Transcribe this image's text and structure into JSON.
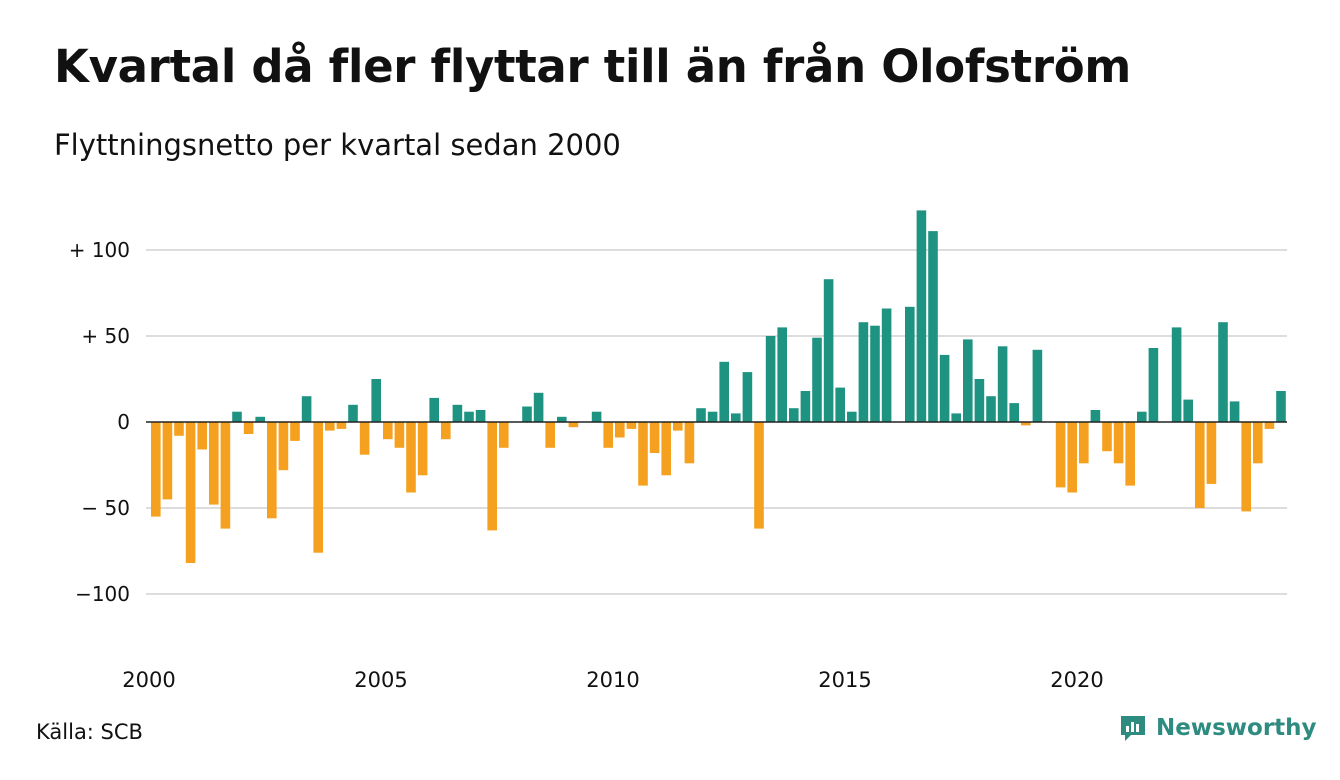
{
  "title": "Kvartal då fler flyttar till än från Olofström",
  "subtitle": "Flyttningsnetto per kvartal sedan 2000",
  "source": "Källa: SCB",
  "brand": {
    "name": "Newsworthy",
    "icon": "newsworthy-logo-icon",
    "color": "#2e8b80"
  },
  "colors": {
    "positive": "#1f9382",
    "negative": "#f5a11f",
    "grid": "#dddddd",
    "zero_line": "#222222"
  },
  "chart_data": {
    "type": "bar",
    "title": "Kvartal då fler flyttar till än från Olofström",
    "subtitle": "Flyttningsnetto per kvartal sedan 2000",
    "xlabel": "",
    "ylabel": "",
    "x_start": "2000 Q1",
    "x_ticks": [
      "2000",
      "2005",
      "2010",
      "2015",
      "2020"
    ],
    "y_ticks": [
      {
        "value": 100,
        "label": "+ 100"
      },
      {
        "value": 50,
        "label": "+  50"
      },
      {
        "value": 0,
        "label": "0"
      },
      {
        "value": -50,
        "label": "− 50"
      },
      {
        "value": -100,
        "label": "−100"
      }
    ],
    "ylim": [
      -130,
      128
    ],
    "grid": true,
    "legend": "none",
    "values": [
      -55,
      -45,
      -8,
      -82,
      -16,
      -48,
      -62,
      6,
      -7,
      3,
      -56,
      -28,
      -11,
      15,
      -76,
      -5,
      -4,
      10,
      -19,
      25,
      -10,
      -15,
      -41,
      -31,
      14,
      -10,
      10,
      6,
      7,
      -63,
      -15,
      0,
      9,
      17,
      -15,
      3,
      -3,
      0,
      6,
      -15,
      -9,
      -4,
      -37,
      -18,
      -31,
      -5,
      -24,
      8,
      6,
      35,
      5,
      29,
      -62,
      50,
      55,
      8,
      18,
      49,
      83,
      20,
      6,
      58,
      56,
      66,
      0,
      67,
      123,
      111,
      39,
      5,
      48,
      25,
      15,
      44,
      11,
      -2,
      42,
      0,
      -38,
      -41,
      -24,
      7,
      -17,
      -24,
      -37,
      6,
      43,
      0,
      55,
      13,
      -50,
      -36,
      58,
      12,
      -52,
      -24,
      -4,
      18
    ]
  }
}
